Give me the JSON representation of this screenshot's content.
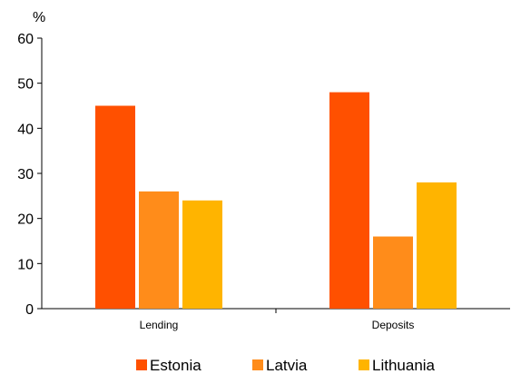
{
  "chart_data": {
    "type": "bar",
    "ylabel": "%",
    "ylim": [
      0,
      60
    ],
    "yticks": [
      0,
      10,
      20,
      30,
      40,
      50,
      60
    ],
    "categories": [
      "Lending",
      "Deposits"
    ],
    "series": [
      {
        "name": "Estonia",
        "values": [
          45,
          48
        ],
        "color": "#FF5000"
      },
      {
        "name": "Latvia",
        "values": [
          26,
          16
        ],
        "color": "#FF8C1A"
      },
      {
        "name": "Lithuania",
        "values": [
          24,
          28
        ],
        "color": "#FFB400"
      }
    ],
    "legend_position": "bottom",
    "grid": false
  }
}
